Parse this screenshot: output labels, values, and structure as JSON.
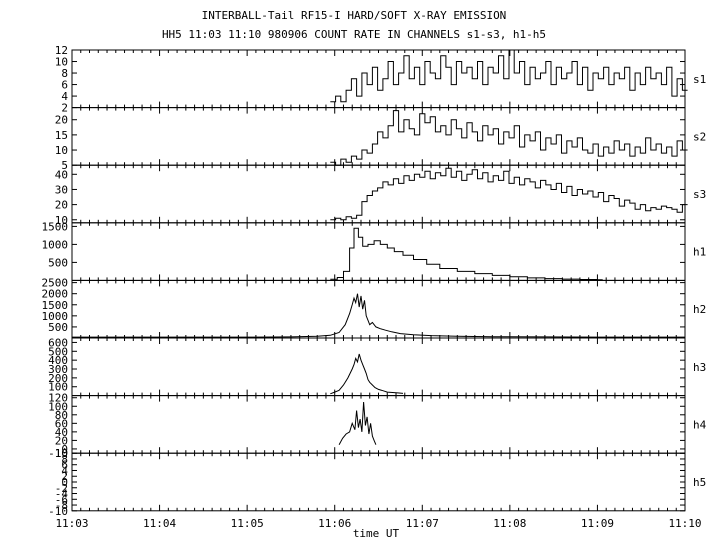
{
  "title_line1": "INTERBALL-Tail RF15-I HARD/SOFT X-RAY EMISSION",
  "title_line2": "HH5 11:03 11:10 980906  COUNT RATE IN CHANNELS s1-s3, h1-h5",
  "chart_data": {
    "type": "line",
    "title": "INTERBALL-Tail RF15-I HARD/SOFT X-RAY EMISSION",
    "subtitle": "HH5 11:03 11:10 980906  COUNT RATE IN CHANNELS s1-s3, h1-h5",
    "xlabel": "time UT",
    "x_range_minutes": [
      0,
      7
    ],
    "x_ticks": [
      "11:03",
      "11:04",
      "11:05",
      "11:06",
      "11:07",
      "11:08",
      "11:09",
      "11:10"
    ],
    "grid": false,
    "panels": [
      {
        "name": "s1",
        "ylim": [
          2,
          12
        ],
        "y_ticks": [
          2,
          4,
          6,
          8,
          10,
          12
        ],
        "step": true,
        "x": [
          2.95,
          3.01,
          3.07,
          3.13,
          3.19,
          3.25,
          3.31,
          3.37,
          3.43,
          3.49,
          3.55,
          3.61,
          3.67,
          3.73,
          3.79,
          3.85,
          3.91,
          3.97,
          4.03,
          4.09,
          4.15,
          4.21,
          4.27,
          4.33,
          4.39,
          4.45,
          4.51,
          4.57,
          4.63,
          4.69,
          4.75,
          4.81,
          4.87,
          4.93,
          4.99,
          5.05,
          5.11,
          5.17,
          5.23,
          5.29,
          5.35,
          5.41,
          5.47,
          5.53,
          5.59,
          5.65,
          5.71,
          5.77,
          5.83,
          5.89,
          5.95,
          6.01,
          6.07,
          6.13,
          6.19,
          6.25,
          6.31,
          6.37,
          6.43,
          6.49,
          6.55,
          6.61,
          6.67,
          6.73,
          6.79,
          6.85,
          6.91,
          6.97
        ],
        "y": [
          3,
          4,
          3,
          5,
          7,
          4,
          8,
          6,
          9,
          5,
          7,
          10,
          6,
          8,
          11,
          7,
          9,
          6,
          10,
          8,
          7,
          11,
          9,
          6,
          10,
          8,
          9,
          7,
          10,
          6,
          9,
          8,
          11,
          7,
          12,
          8,
          10,
          6,
          9,
          7,
          8,
          10,
          6,
          9,
          7,
          8,
          10,
          6,
          9,
          5,
          8,
          7,
          9,
          6,
          8,
          7,
          9,
          5,
          8,
          6,
          9,
          7,
          8,
          6,
          9,
          4,
          7,
          5
        ]
      },
      {
        "name": "s2",
        "ylim": [
          5,
          24
        ],
        "y_ticks": [
          5,
          10,
          15,
          20
        ],
        "step": true,
        "x": [
          2.95,
          3.01,
          3.07,
          3.13,
          3.19,
          3.25,
          3.31,
          3.37,
          3.43,
          3.49,
          3.55,
          3.61,
          3.67,
          3.73,
          3.79,
          3.85,
          3.91,
          3.97,
          4.03,
          4.09,
          4.15,
          4.21,
          4.27,
          4.33,
          4.39,
          4.45,
          4.51,
          4.57,
          4.63,
          4.69,
          4.75,
          4.81,
          4.87,
          4.93,
          4.99,
          5.05,
          5.11,
          5.17,
          5.23,
          5.29,
          5.35,
          5.41,
          5.47,
          5.53,
          5.59,
          5.65,
          5.71,
          5.77,
          5.83,
          5.89,
          5.95,
          6.01,
          6.07,
          6.13,
          6.19,
          6.25,
          6.31,
          6.37,
          6.43,
          6.49,
          6.55,
          6.61,
          6.67,
          6.73,
          6.79,
          6.85,
          6.91,
          6.97
        ],
        "y": [
          6,
          5,
          7,
          6,
          8,
          7,
          10,
          9,
          12,
          16,
          14,
          18,
          23,
          16,
          20,
          17,
          15,
          22,
          19,
          21,
          16,
          18,
          15,
          20,
          17,
          14,
          19,
          16,
          13,
          18,
          15,
          17,
          12,
          16,
          14,
          18,
          11,
          15,
          13,
          16,
          10,
          14,
          12,
          15,
          9,
          13,
          11,
          14,
          10,
          9,
          12,
          8,
          11,
          9,
          13,
          10,
          12,
          8,
          11,
          9,
          14,
          10,
          12,
          9,
          11,
          8,
          13,
          10
        ]
      },
      {
        "name": "s3",
        "ylim": [
          8,
          46
        ],
        "y_ticks": [
          10,
          20,
          30,
          40
        ],
        "step": true,
        "x": [
          2.95,
          3.01,
          3.07,
          3.13,
          3.19,
          3.25,
          3.31,
          3.37,
          3.43,
          3.49,
          3.55,
          3.61,
          3.67,
          3.73,
          3.79,
          3.85,
          3.91,
          3.97,
          4.03,
          4.09,
          4.15,
          4.21,
          4.27,
          4.33,
          4.39,
          4.45,
          4.51,
          4.57,
          4.63,
          4.69,
          4.75,
          4.81,
          4.87,
          4.93,
          4.99,
          5.05,
          5.11,
          5.17,
          5.23,
          5.29,
          5.35,
          5.41,
          5.47,
          5.53,
          5.59,
          5.65,
          5.71,
          5.77,
          5.83,
          5.89,
          5.95,
          6.01,
          6.07,
          6.13,
          6.19,
          6.25,
          6.31,
          6.37,
          6.43,
          6.49,
          6.55,
          6.61,
          6.67,
          6.73,
          6.79,
          6.85,
          6.91,
          6.97
        ],
        "y": [
          10,
          11,
          10,
          12,
          11,
          13,
          22,
          26,
          29,
          31,
          35,
          33,
          37,
          34,
          39,
          36,
          40,
          38,
          42,
          37,
          41,
          39,
          44,
          38,
          42,
          36,
          40,
          43,
          37,
          41,
          35,
          39,
          36,
          42,
          34,
          38,
          33,
          37,
          35,
          31,
          36,
          33,
          30,
          34,
          28,
          32,
          26,
          30,
          27,
          29,
          25,
          28,
          22,
          26,
          24,
          19,
          23,
          21,
          17,
          20,
          16,
          18,
          17,
          19,
          18,
          17,
          15,
          20
        ]
      },
      {
        "name": "h1",
        "ylim": [
          0,
          1600
        ],
        "y_ticks": [
          500,
          1000,
          1500
        ],
        "step": true,
        "x": [
          2.95,
          3.03,
          3.1,
          3.17,
          3.22,
          3.27,
          3.32,
          3.38,
          3.45,
          3.52,
          3.6,
          3.68,
          3.78,
          3.9,
          4.05,
          4.2,
          4.4,
          4.6,
          4.8,
          5.0,
          5.2,
          5.4,
          5.6,
          5.8,
          6.0
        ],
        "y": [
          30,
          80,
          250,
          900,
          1450,
          1200,
          950,
          1000,
          1100,
          1000,
          900,
          800,
          700,
          580,
          450,
          330,
          250,
          190,
          140,
          100,
          70,
          50,
          35,
          25,
          20
        ]
      },
      {
        "name": "h2",
        "ylim": [
          0,
          2600
        ],
        "y_ticks": [
          500,
          1000,
          1500,
          2000,
          2500
        ],
        "step": false,
        "x": [
          0.0,
          1.0,
          2.0,
          2.5,
          2.8,
          2.95,
          3.05,
          3.12,
          3.17,
          3.2,
          3.22,
          3.24,
          3.26,
          3.28,
          3.3,
          3.32,
          3.34,
          3.36,
          3.38,
          3.4,
          3.43,
          3.47,
          3.52,
          3.58,
          3.65,
          3.75,
          3.9,
          4.1,
          4.4,
          4.8,
          5.4,
          6.0,
          7.0
        ],
        "y": [
          40,
          40,
          40,
          50,
          80,
          120,
          250,
          600,
          1100,
          1500,
          1800,
          1600,
          2000,
          1400,
          1900,
          1300,
          1700,
          1000,
          800,
          600,
          700,
          500,
          420,
          350,
          280,
          200,
          150,
          110,
          80,
          60,
          50,
          40,
          40
        ]
      },
      {
        "name": "h3",
        "ylim": [
          0,
          650
        ],
        "y_ticks": [
          100,
          200,
          300,
          400,
          500,
          600
        ],
        "step": false,
        "x": [
          2.95,
          3.0,
          3.05,
          3.1,
          3.15,
          3.2,
          3.22,
          3.24,
          3.26,
          3.28,
          3.3,
          3.32,
          3.34,
          3.36,
          3.38,
          3.4,
          3.43,
          3.46,
          3.5,
          3.55,
          3.6,
          3.66,
          3.72,
          3.78
        ],
        "y": [
          20,
          40,
          60,
          120,
          200,
          300,
          350,
          420,
          380,
          470,
          400,
          350,
          300,
          250,
          180,
          150,
          120,
          90,
          70,
          55,
          40,
          35,
          30,
          25
        ]
      },
      {
        "name": "h4",
        "ylim": [
          -10,
          125
        ],
        "y_ticks": [
          -10,
          0,
          20,
          40,
          60,
          80,
          100,
          120
        ],
        "step": false,
        "x": [
          3.05,
          3.09,
          3.13,
          3.17,
          3.2,
          3.23,
          3.25,
          3.27,
          3.29,
          3.31,
          3.33,
          3.35,
          3.37,
          3.39,
          3.41,
          3.43,
          3.45,
          3.47
        ],
        "y": [
          10,
          25,
          35,
          40,
          60,
          45,
          90,
          50,
          70,
          40,
          110,
          55,
          75,
          35,
          60,
          30,
          20,
          10
        ]
      },
      {
        "name": "h5",
        "ylim": [
          -10,
          10
        ],
        "y_ticks": [
          -10,
          -8,
          -6,
          -4,
          -2,
          0,
          2,
          4,
          6,
          8,
          10
        ],
        "step": false,
        "x": [],
        "y": []
      }
    ]
  }
}
